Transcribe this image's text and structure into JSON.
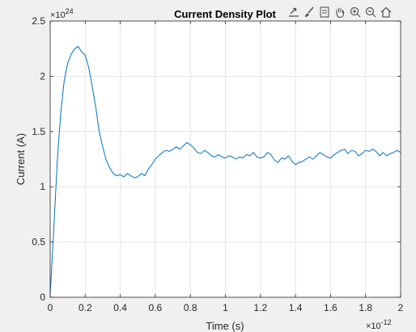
{
  "chart_data": {
    "type": "line",
    "title": "Current Density Plot",
    "xlabel": "Time (s)",
    "ylabel": "Current (A)",
    "x_exponent_label": "×10",
    "x_exponent": "-12",
    "y_exponent_label": "×10",
    "y_exponent": "24",
    "xlim": [
      0,
      2
    ],
    "ylim": [
      0,
      2.5
    ],
    "x_ticks": [
      0,
      0.2,
      0.4,
      0.6,
      0.8,
      1,
      1.2,
      1.4,
      1.6,
      1.8,
      2
    ],
    "x_tick_labels": [
      "0",
      "0.2",
      "0.4",
      "0.6",
      "0.8",
      "1",
      "1.2",
      "1.4",
      "1.6",
      "1.8",
      "2"
    ],
    "y_ticks": [
      0,
      0.5,
      1,
      1.5,
      2,
      2.5
    ],
    "y_tick_labels": [
      "0",
      "0.5",
      "1",
      "1.5",
      "2",
      "2.5"
    ],
    "grid": true,
    "series": [
      {
        "color": "#0072bd",
        "x": [
          0,
          0.02,
          0.04,
          0.06,
          0.08,
          0.1,
          0.12,
          0.14,
          0.16,
          0.18,
          0.2,
          0.22,
          0.24,
          0.26,
          0.28,
          0.3,
          0.32,
          0.34,
          0.36,
          0.38,
          0.4,
          0.42,
          0.44,
          0.46,
          0.48,
          0.5,
          0.52,
          0.54,
          0.56,
          0.58,
          0.6,
          0.62,
          0.64,
          0.66,
          0.68,
          0.7,
          0.72,
          0.74,
          0.76,
          0.78,
          0.8,
          0.82,
          0.84,
          0.86,
          0.88,
          0.9,
          0.92,
          0.94,
          0.96,
          0.98,
          1.0,
          1.02,
          1.04,
          1.06,
          1.08,
          1.1,
          1.12,
          1.14,
          1.16,
          1.18,
          1.2,
          1.22,
          1.24,
          1.26,
          1.28,
          1.3,
          1.32,
          1.34,
          1.36,
          1.38,
          1.4,
          1.42,
          1.44,
          1.46,
          1.48,
          1.5,
          1.52,
          1.54,
          1.56,
          1.58,
          1.6,
          1.62,
          1.64,
          1.66,
          1.68,
          1.7,
          1.72,
          1.74,
          1.76,
          1.78,
          1.8,
          1.82,
          1.84,
          1.86,
          1.88,
          1.9,
          1.92,
          1.94,
          1.96,
          1.98,
          2.0
        ],
        "y": [
          0.02,
          0.6,
          1.22,
          1.66,
          1.96,
          2.12,
          2.2,
          2.25,
          2.27,
          2.22,
          2.19,
          2.08,
          1.91,
          1.72,
          1.5,
          1.36,
          1.24,
          1.17,
          1.12,
          1.1,
          1.11,
          1.09,
          1.12,
          1.1,
          1.08,
          1.09,
          1.12,
          1.1,
          1.16,
          1.2,
          1.25,
          1.28,
          1.31,
          1.33,
          1.32,
          1.34,
          1.36,
          1.34,
          1.37,
          1.4,
          1.38,
          1.35,
          1.31,
          1.3,
          1.33,
          1.31,
          1.28,
          1.27,
          1.29,
          1.27,
          1.26,
          1.28,
          1.27,
          1.25,
          1.27,
          1.26,
          1.29,
          1.28,
          1.31,
          1.27,
          1.26,
          1.27,
          1.31,
          1.29,
          1.24,
          1.22,
          1.26,
          1.25,
          1.28,
          1.23,
          1.2,
          1.22,
          1.23,
          1.25,
          1.27,
          1.25,
          1.28,
          1.31,
          1.29,
          1.27,
          1.26,
          1.29,
          1.31,
          1.33,
          1.34,
          1.3,
          1.33,
          1.32,
          1.28,
          1.3,
          1.33,
          1.32,
          1.34,
          1.32,
          1.28,
          1.31,
          1.28,
          1.3,
          1.31,
          1.33,
          1.31
        ]
      }
    ]
  },
  "colors": {
    "figure_bg": "#f0f0f0",
    "axes_bg": "#ffffff",
    "axis": "#262626",
    "grid": "#dfdfdf",
    "line": "#0072bd"
  },
  "toolbar": {
    "icons": [
      "export-icon",
      "brush-icon",
      "data-tips-icon",
      "pan-hand-icon",
      "zoom-in-icon",
      "zoom-out-icon",
      "home-icon"
    ]
  }
}
